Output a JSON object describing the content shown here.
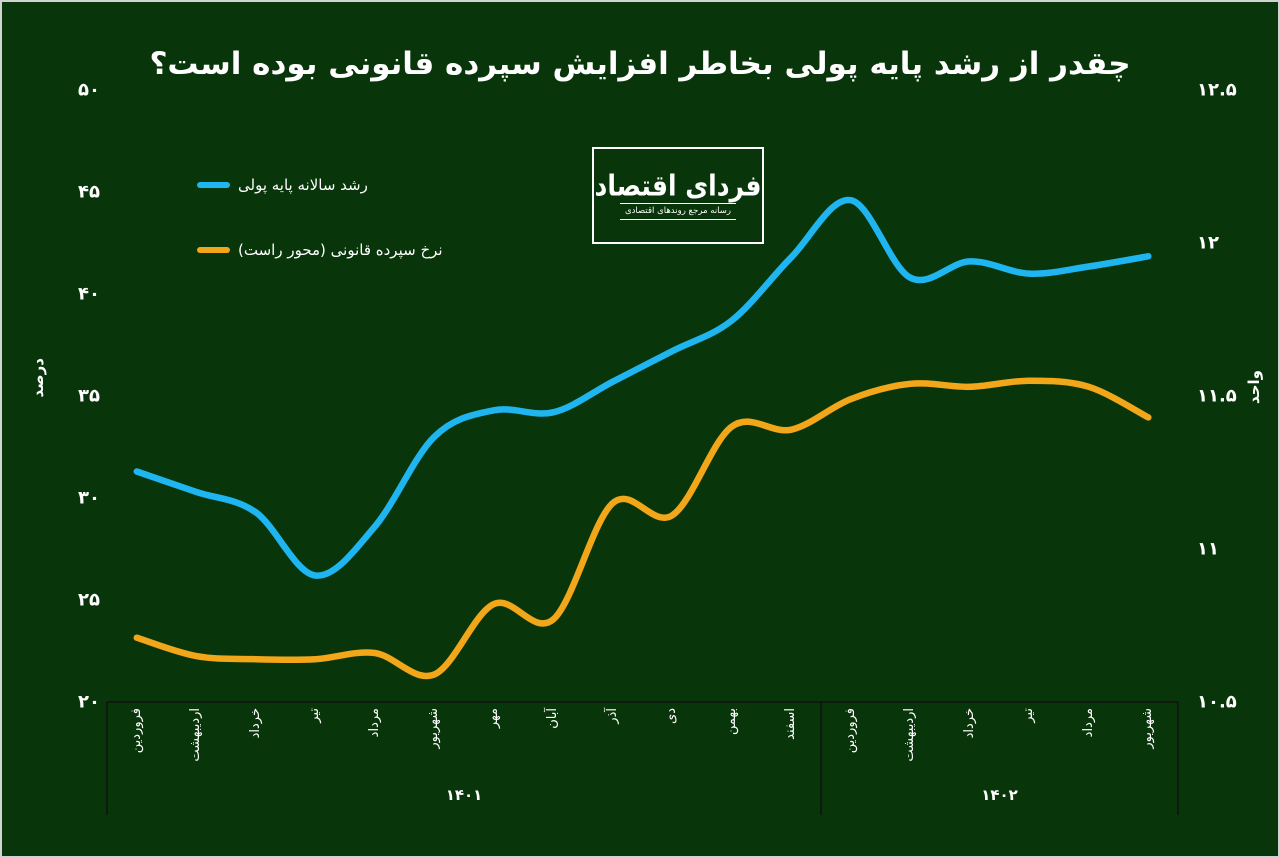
{
  "title": "چقدر از رشد پایه پولی بخاطر افزایش سپرده قانونی بوده است؟",
  "logo": {
    "name": "فردای اقتصاد",
    "tagline": "رسانه مرجع روندهای اقتصادی"
  },
  "legend": [
    {
      "label": "رشد سالانه پایه پولی",
      "color": "#1fb5f0"
    },
    {
      "label": "نرخ سپرده قانونی (محور راست)",
      "color": "#f2a619"
    }
  ],
  "colors": {
    "background": "#083509",
    "blue_line": "#1fb5f0",
    "orange_line": "#f2a619",
    "text": "#ffffff",
    "axis_line": "#101510",
    "frame_border": "#d2d2d2"
  },
  "chart_data": {
    "type": "line",
    "title": "چقدر از رشد پایه پولی بخاطر افزایش سپرده قانونی بوده است؟",
    "x_categories_months": [
      "فروردین",
      "اردیبهشت",
      "خرداد",
      "تیر",
      "مرداد",
      "شهریور",
      "مهر",
      "آبان",
      "آذر",
      "دی",
      "بهمن",
      "اسفند",
      "فروردین",
      "اردیبهشت",
      "خرداد",
      "تیر",
      "مرداد",
      "شهریور"
    ],
    "x_category_groups": [
      {
        "label": "۱۴۰۱",
        "months": 12
      },
      {
        "label": "۱۴۰۲",
        "months": 6
      }
    ],
    "series": [
      {
        "name": "رشد سالانه پایه پولی",
        "yaxis": "left",
        "color": "#1fb5f0",
        "values": [
          31.3,
          30.3,
          29.3,
          26.2,
          28.6,
          33.0,
          34.3,
          34.2,
          35.7,
          37.2,
          38.7,
          41.8,
          44.6,
          40.8,
          41.6,
          41.0,
          41.35,
          41.85
        ]
      },
      {
        "name": "نرخ سپرده قانونی (محور راست)",
        "yaxis": "right",
        "color": "#f2a619",
        "values": [
          10.71,
          10.65,
          10.64,
          10.64,
          10.66,
          10.59,
          10.82,
          10.77,
          11.15,
          11.11,
          11.4,
          11.39,
          11.49,
          11.54,
          11.53,
          11.55,
          11.53,
          11.43
        ]
      }
    ],
    "left_axis": {
      "title": "درصد",
      "tick_labels": [
        "۵۰",
        "۴۵",
        "۴۰",
        "۳۵",
        "۳۰",
        "۲۵",
        "۲۰"
      ],
      "tick_values": [
        50,
        45,
        40,
        35,
        30,
        25,
        20
      ],
      "range": [
        20,
        50
      ]
    },
    "right_axis": {
      "title": "واحد",
      "tick_labels": [
        "۱۲.۵",
        "۱۲",
        "۱۱.۵",
        "۱۱",
        "۱۰.۵"
      ],
      "tick_values": [
        12.5,
        12,
        11.5,
        11,
        10.5
      ],
      "range": [
        10.5,
        12.5
      ]
    },
    "legend_position": "top-left",
    "grid": false
  }
}
